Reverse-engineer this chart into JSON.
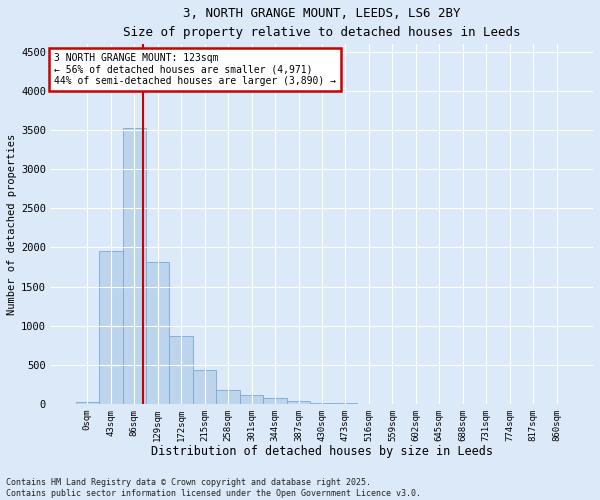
{
  "title_line1": "3, NORTH GRANGE MOUNT, LEEDS, LS6 2BY",
  "title_line2": "Size of property relative to detached houses in Leeds",
  "xlabel": "Distribution of detached houses by size in Leeds",
  "ylabel": "Number of detached properties",
  "footer_line1": "Contains HM Land Registry data © Crown copyright and database right 2025.",
  "footer_line2": "Contains public sector information licensed under the Open Government Licence v3.0.",
  "annotation_line1": "3 NORTH GRANGE MOUNT: 123sqm",
  "annotation_line2": "← 56% of detached houses are smaller (4,971)",
  "annotation_line3": "44% of semi-detached houses are larger (3,890) →",
  "bar_labels": [
    "0sqm",
    "43sqm",
    "86sqm",
    "129sqm",
    "172sqm",
    "215sqm",
    "258sqm",
    "301sqm",
    "344sqm",
    "387sqm",
    "430sqm",
    "473sqm",
    "516sqm",
    "559sqm",
    "602sqm",
    "645sqm",
    "688sqm",
    "731sqm",
    "774sqm",
    "817sqm",
    "860sqm"
  ],
  "bar_values": [
    20,
    1950,
    3530,
    1820,
    870,
    430,
    175,
    110,
    75,
    40,
    10,
    5,
    3,
    2,
    1,
    1,
    0,
    0,
    0,
    0,
    0
  ],
  "bar_color": "#bdd4ed",
  "bar_edge_color": "#7aa8d4",
  "vline_x_bar_index": 2.38,
  "vline_color": "#cc0000",
  "ylim": [
    0,
    4600
  ],
  "yticks": [
    0,
    500,
    1000,
    1500,
    2000,
    2500,
    3000,
    3500,
    4000,
    4500
  ],
  "bg_color": "#dce9f8",
  "plot_bg_color": "#dce9f8",
  "grid_color": "#ffffff",
  "annotation_box_color": "#cc0000"
}
